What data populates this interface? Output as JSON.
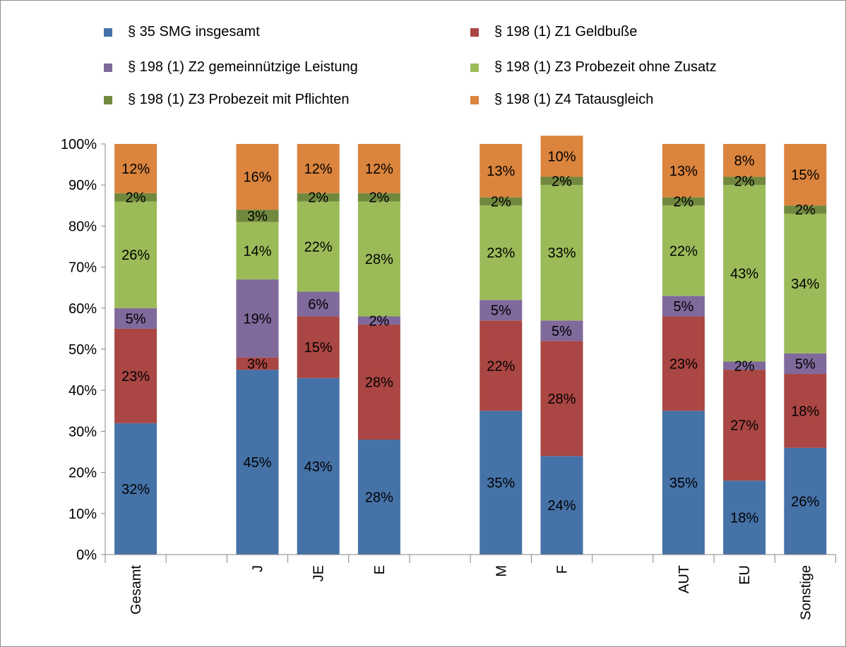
{
  "chart_data": {
    "type": "bar",
    "stacked": true,
    "percent_stacked": true,
    "categories": [
      "Gesamt",
      "",
      "J",
      "JE",
      "E",
      "",
      "M",
      "F",
      "",
      "AUT",
      "EU",
      "Sonstige"
    ],
    "series": [
      {
        "name": "§ 35 SMG insgesamt",
        "color": "#4572a7",
        "values": [
          32,
          null,
          45,
          43,
          28,
          null,
          35,
          24,
          null,
          35,
          18,
          26
        ],
        "labels": [
          "32%",
          "",
          "45%",
          "43%",
          "28%",
          "",
          "35%",
          "24%",
          "",
          "35%",
          "18%",
          "26%"
        ]
      },
      {
        "name": "§ 198 (1) Z1 Geldbuße",
        "color": "#aa4643",
        "values": [
          23,
          null,
          3,
          15,
          28,
          null,
          22,
          28,
          null,
          23,
          27,
          18
        ],
        "labels": [
          "23%",
          "",
          "3%",
          "15%",
          "28%",
          "",
          "22%",
          "28%",
          "",
          "23%",
          "27%",
          "18%"
        ]
      },
      {
        "name": "§ 198 (1) Z2 gemeinnützige Leistung",
        "color": "#80699b",
        "values": [
          5,
          null,
          19,
          6,
          2,
          null,
          5,
          5,
          null,
          5,
          2,
          5
        ],
        "labels": [
          "5%",
          "",
          "19%",
          "6%",
          "2%",
          "",
          "5%",
          "5%",
          "",
          "5%",
          "2%",
          "5%"
        ]
      },
      {
        "name": "§ 198 (1) Z3 Probezeit ohne Zusatz",
        "color": "#9bbb59",
        "values": [
          26,
          null,
          14,
          22,
          28,
          null,
          23,
          33,
          null,
          22,
          43,
          34
        ],
        "labels": [
          "26%",
          "",
          "14%",
          "22%",
          "28%",
          "",
          "23%",
          "33%",
          "",
          "22%",
          "43%",
          "34%"
        ]
      },
      {
        "name": "§ 198 (1) Z3 Probezeit mit Pflichten",
        "color": "#71893f",
        "values": [
          2,
          null,
          3,
          2,
          2,
          null,
          2,
          2,
          null,
          2,
          2,
          2
        ],
        "labels": [
          "2%",
          "",
          "3%",
          "2%",
          "2%",
          "",
          "2%",
          "2%",
          "",
          "2%",
          "2%",
          "2%"
        ]
      },
      {
        "name": "§ 198 (1) Z4 Tatausgleich",
        "color": "#db843d",
        "values": [
          12,
          null,
          16,
          12,
          12,
          null,
          13,
          10,
          null,
          13,
          8,
          15
        ],
        "labels": [
          "12%",
          "",
          "16%",
          "12%",
          "12%",
          "",
          "13%",
          "10%",
          "",
          "13%",
          "8%",
          "15%"
        ]
      }
    ],
    "y_ticks": [
      "0%",
      "10%",
      "20%",
      "30%",
      "40%",
      "50%",
      "60%",
      "70%",
      "80%",
      "90%",
      "100%"
    ],
    "ylim": [
      0,
      100
    ],
    "grid": false,
    "legend_position": "top",
    "x_tick_rotation": "vertical"
  }
}
